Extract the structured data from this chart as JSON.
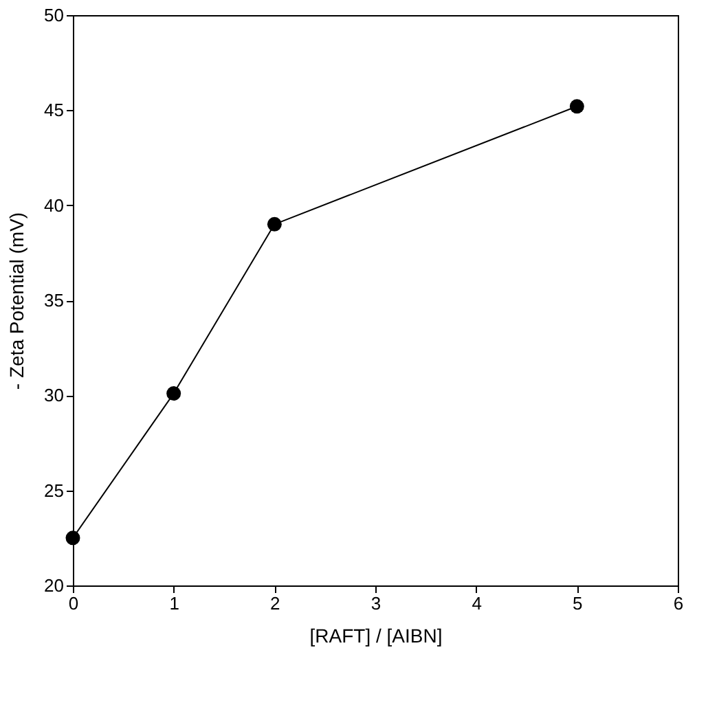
{
  "chart_data": {
    "type": "line",
    "xlabel": "[RAFT] / [AIBN]",
    "ylabel": "- Zeta Potential (mV)",
    "x": [
      0,
      1,
      2,
      5
    ],
    "series": [
      {
        "color": "#000000",
        "values": [
          22.5,
          30.1,
          39.0,
          45.2
        ]
      }
    ],
    "xlim": [
      0,
      6
    ],
    "xticks": [
      0,
      1,
      2,
      3,
      4,
      5,
      6
    ],
    "ylim": [
      20,
      50
    ],
    "yticks": [
      20,
      25,
      30,
      35,
      40,
      45,
      50
    ],
    "marker": "circle",
    "line_style": "solid",
    "grid": false
  }
}
